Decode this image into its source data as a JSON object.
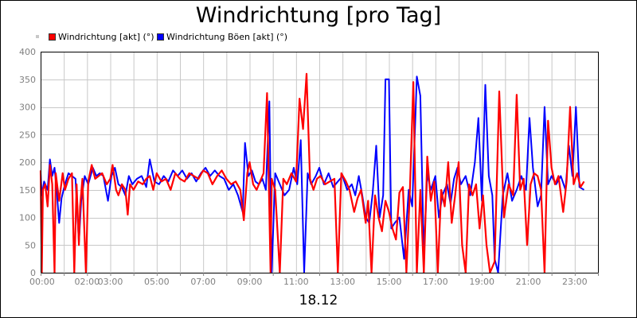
{
  "chart_data": {
    "type": "line",
    "title": "Windrichtung [pro Tag]",
    "xlabel": "18.12",
    "ylabel": "",
    "x_tick_labels": [
      "00:00",
      "02:00",
      "03:00",
      "05:00",
      "07:00",
      "09:00",
      "11:00",
      "13:00",
      "15:00",
      "17:00",
      "19:00",
      "21:00",
      "23:00"
    ],
    "x_tick_hours": [
      0,
      2,
      3,
      5,
      7,
      9,
      11,
      13,
      15,
      17,
      19,
      21,
      23
    ],
    "y_ticks": [
      0,
      50,
      100,
      150,
      200,
      250,
      300,
      350,
      400
    ],
    "xlim": [
      0,
      24
    ],
    "ylim": [
      0,
      400
    ],
    "grid": true,
    "legend_position": "top-left",
    "series": [
      {
        "name": "Windrichtung [akt] (°)",
        "color": "#ff0000",
        "points": [
          [
            0,
            185
          ],
          [
            0.05,
            0
          ],
          [
            0.1,
            150
          ],
          [
            0.2,
            160
          ],
          [
            0.3,
            120
          ],
          [
            0.4,
            195
          ],
          [
            0.5,
            160
          ],
          [
            0.6,
            0
          ],
          [
            0.65,
            180
          ],
          [
            0.8,
            130
          ],
          [
            0.95,
            180
          ],
          [
            1.05,
            150
          ],
          [
            1.2,
            170
          ],
          [
            1.35,
            180
          ],
          [
            1.45,
            0
          ],
          [
            1.55,
            160
          ],
          [
            1.65,
            50
          ],
          [
            1.7,
            120
          ],
          [
            1.8,
            170
          ],
          [
            1.95,
            0
          ],
          [
            2.05,
            165
          ],
          [
            2.2,
            195
          ],
          [
            2.35,
            170
          ],
          [
            2.5,
            175
          ],
          [
            2.65,
            180
          ],
          [
            2.85,
            160
          ],
          [
            3.0,
            170
          ],
          [
            3.1,
            195
          ],
          [
            3.25,
            150
          ],
          [
            3.35,
            140
          ],
          [
            3.5,
            160
          ],
          [
            3.65,
            150
          ],
          [
            3.75,
            105
          ],
          [
            3.85,
            160
          ],
          [
            4.0,
            150
          ],
          [
            4.2,
            165
          ],
          [
            4.4,
            160
          ],
          [
            4.55,
            170
          ],
          [
            4.7,
            175
          ],
          [
            4.85,
            150
          ],
          [
            5.0,
            180
          ],
          [
            5.2,
            165
          ],
          [
            5.4,
            170
          ],
          [
            5.6,
            150
          ],
          [
            5.8,
            180
          ],
          [
            6.0,
            170
          ],
          [
            6.2,
            165
          ],
          [
            6.4,
            180
          ],
          [
            6.6,
            175
          ],
          [
            6.8,
            170
          ],
          [
            7.0,
            185
          ],
          [
            7.2,
            180
          ],
          [
            7.4,
            160
          ],
          [
            7.6,
            175
          ],
          [
            7.8,
            185
          ],
          [
            8.0,
            170
          ],
          [
            8.2,
            160
          ],
          [
            8.4,
            165
          ],
          [
            8.6,
            150
          ],
          [
            8.75,
            95
          ],
          [
            8.9,
            180
          ],
          [
            9.0,
            200
          ],
          [
            9.15,
            160
          ],
          [
            9.3,
            150
          ],
          [
            9.45,
            165
          ],
          [
            9.6,
            180
          ],
          [
            9.75,
            325
          ],
          [
            9.9,
            0
          ],
          [
            9.95,
            170
          ],
          [
            10.1,
            150
          ],
          [
            10.3,
            0
          ],
          [
            10.45,
            170
          ],
          [
            10.6,
            160
          ],
          [
            10.8,
            180
          ],
          [
            11.0,
            165
          ],
          [
            11.15,
            315
          ],
          [
            11.3,
            260
          ],
          [
            11.45,
            360
          ],
          [
            11.6,
            170
          ],
          [
            11.75,
            150
          ],
          [
            11.9,
            170
          ],
          [
            12.05,
            175
          ],
          [
            12.25,
            160
          ],
          [
            12.45,
            165
          ],
          [
            12.65,
            170
          ],
          [
            12.8,
            0
          ],
          [
            12.95,
            180
          ],
          [
            13.15,
            165
          ],
          [
            13.3,
            150
          ],
          [
            13.5,
            110
          ],
          [
            13.65,
            135
          ],
          [
            13.8,
            150
          ],
          [
            14.0,
            90
          ],
          [
            14.1,
            130
          ],
          [
            14.25,
            0
          ],
          [
            14.4,
            140
          ],
          [
            14.55,
            100
          ],
          [
            14.7,
            75
          ],
          [
            14.85,
            130
          ],
          [
            15.0,
            110
          ],
          [
            15.15,
            80
          ],
          [
            15.3,
            60
          ],
          [
            15.45,
            145
          ],
          [
            15.6,
            155
          ],
          [
            15.75,
            0
          ],
          [
            15.9,
            150
          ],
          [
            16.05,
            345
          ],
          [
            16.2,
            0
          ],
          [
            16.35,
            150
          ],
          [
            16.5,
            0
          ],
          [
            16.65,
            210
          ],
          [
            16.8,
            130
          ],
          [
            16.95,
            165
          ],
          [
            17.1,
            0
          ],
          [
            17.25,
            150
          ],
          [
            17.4,
            120
          ],
          [
            17.55,
            200
          ],
          [
            17.7,
            90
          ],
          [
            17.85,
            140
          ],
          [
            18.0,
            200
          ],
          [
            18.15,
            50
          ],
          [
            18.3,
            0
          ],
          [
            18.45,
            160
          ],
          [
            18.6,
            140
          ],
          [
            18.75,
            160
          ],
          [
            18.9,
            80
          ],
          [
            19.05,
            140
          ],
          [
            19.2,
            50
          ],
          [
            19.35,
            0
          ],
          [
            19.55,
            20
          ],
          [
            19.75,
            328
          ],
          [
            19.95,
            100
          ],
          [
            20.15,
            160
          ],
          [
            20.35,
            140
          ],
          [
            20.5,
            322
          ],
          [
            20.65,
            150
          ],
          [
            20.8,
            170
          ],
          [
            20.95,
            50
          ],
          [
            21.1,
            160
          ],
          [
            21.25,
            180
          ],
          [
            21.4,
            175
          ],
          [
            21.55,
            150
          ],
          [
            21.7,
            0
          ],
          [
            21.85,
            275
          ],
          [
            22.0,
            190
          ],
          [
            22.15,
            160
          ],
          [
            22.3,
            175
          ],
          [
            22.5,
            110
          ],
          [
            22.65,
            165
          ],
          [
            22.8,
            300
          ],
          [
            22.95,
            160
          ],
          [
            23.1,
            180
          ],
          [
            23.25,
            155
          ],
          [
            23.4,
            165
          ]
        ]
      },
      {
        "name": "Windrichtung Böen [akt] (°)",
        "color": "#0000ff",
        "points": [
          [
            0,
            180
          ],
          [
            0.05,
            140
          ],
          [
            0.15,
            165
          ],
          [
            0.3,
            150
          ],
          [
            0.4,
            205
          ],
          [
            0.5,
            175
          ],
          [
            0.6,
            190
          ],
          [
            0.7,
            145
          ],
          [
            0.8,
            90
          ],
          [
            0.9,
            135
          ],
          [
            1.05,
            160
          ],
          [
            1.2,
            180
          ],
          [
            1.35,
            175
          ],
          [
            1.5,
            170
          ],
          [
            1.65,
            55
          ],
          [
            1.75,
            130
          ],
          [
            1.9,
            175
          ],
          [
            2.05,
            160
          ],
          [
            2.25,
            190
          ],
          [
            2.4,
            175
          ],
          [
            2.55,
            180
          ],
          [
            2.7,
            175
          ],
          [
            2.9,
            130
          ],
          [
            3.05,
            175
          ],
          [
            3.2,
            190
          ],
          [
            3.35,
            160
          ],
          [
            3.5,
            155
          ],
          [
            3.65,
            140
          ],
          [
            3.8,
            175
          ],
          [
            3.95,
            160
          ],
          [
            4.15,
            170
          ],
          [
            4.35,
            175
          ],
          [
            4.55,
            155
          ],
          [
            4.7,
            205
          ],
          [
            4.9,
            165
          ],
          [
            5.1,
            160
          ],
          [
            5.3,
            175
          ],
          [
            5.5,
            165
          ],
          [
            5.7,
            185
          ],
          [
            5.9,
            175
          ],
          [
            6.1,
            185
          ],
          [
            6.3,
            170
          ],
          [
            6.5,
            180
          ],
          [
            6.7,
            165
          ],
          [
            6.9,
            180
          ],
          [
            7.1,
            190
          ],
          [
            7.3,
            175
          ],
          [
            7.5,
            185
          ],
          [
            7.7,
            175
          ],
          [
            7.9,
            170
          ],
          [
            8.1,
            150
          ],
          [
            8.3,
            160
          ],
          [
            8.5,
            140
          ],
          [
            8.7,
            110
          ],
          [
            8.8,
            235
          ],
          [
            8.95,
            175
          ],
          [
            9.1,
            185
          ],
          [
            9.25,
            165
          ],
          [
            9.4,
            160
          ],
          [
            9.55,
            170
          ],
          [
            9.7,
            150
          ],
          [
            9.85,
            310
          ],
          [
            9.95,
            0
          ],
          [
            10.1,
            180
          ],
          [
            10.3,
            160
          ],
          [
            10.5,
            140
          ],
          [
            10.7,
            150
          ],
          [
            10.9,
            190
          ],
          [
            11.05,
            160
          ],
          [
            11.2,
            240
          ],
          [
            11.35,
            0
          ],
          [
            11.5,
            180
          ],
          [
            11.65,
            160
          ],
          [
            11.85,
            175
          ],
          [
            12.0,
            190
          ],
          [
            12.2,
            160
          ],
          [
            12.4,
            180
          ],
          [
            12.6,
            155
          ],
          [
            12.8,
            165
          ],
          [
            13.0,
            175
          ],
          [
            13.2,
            150
          ],
          [
            13.4,
            160
          ],
          [
            13.55,
            140
          ],
          [
            13.7,
            175
          ],
          [
            13.85,
            140
          ],
          [
            14.0,
            100
          ],
          [
            14.15,
            90
          ],
          [
            14.3,
            145
          ],
          [
            14.45,
            230
          ],
          [
            14.6,
            100
          ],
          [
            14.75,
            140
          ],
          [
            14.85,
            350
          ],
          [
            15.0,
            350
          ],
          [
            15.1,
            80
          ],
          [
            15.25,
            90
          ],
          [
            15.45,
            100
          ],
          [
            15.65,
            25
          ],
          [
            15.85,
            150
          ],
          [
            16.0,
            120
          ],
          [
            16.2,
            355
          ],
          [
            16.35,
            320
          ],
          [
            16.5,
            30
          ],
          [
            16.65,
            180
          ],
          [
            16.8,
            150
          ],
          [
            17.0,
            175
          ],
          [
            17.15,
            100
          ],
          [
            17.3,
            140
          ],
          [
            17.5,
            160
          ],
          [
            17.65,
            125
          ],
          [
            17.8,
            170
          ],
          [
            17.95,
            190
          ],
          [
            18.1,
            160
          ],
          [
            18.3,
            175
          ],
          [
            18.5,
            140
          ],
          [
            18.7,
            200
          ],
          [
            18.85,
            280
          ],
          [
            19.0,
            130
          ],
          [
            19.15,
            340
          ],
          [
            19.3,
            175
          ],
          [
            19.45,
            140
          ],
          [
            19.55,
            25
          ],
          [
            19.7,
            0
          ],
          [
            19.9,
            140
          ],
          [
            20.1,
            180
          ],
          [
            20.3,
            130
          ],
          [
            20.5,
            150
          ],
          [
            20.7,
            175
          ],
          [
            20.9,
            150
          ],
          [
            21.05,
            280
          ],
          [
            21.2,
            190
          ],
          [
            21.4,
            120
          ],
          [
            21.55,
            140
          ],
          [
            21.7,
            300
          ],
          [
            21.85,
            160
          ],
          [
            22.0,
            175
          ],
          [
            22.2,
            160
          ],
          [
            22.4,
            175
          ],
          [
            22.6,
            150
          ],
          [
            22.75,
            230
          ],
          [
            22.9,
            175
          ],
          [
            23.05,
            300
          ],
          [
            23.2,
            155
          ],
          [
            23.4,
            150
          ]
        ]
      }
    ]
  }
}
